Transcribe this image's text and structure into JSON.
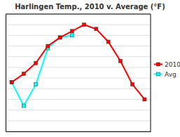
{
  "chart_data": {
    "type": "line",
    "title": "Harlingen Temp., 2010 v. Average (°F)",
    "x": [
      1,
      2,
      3,
      4,
      5,
      6,
      7,
      8,
      9,
      10,
      11,
      12
    ],
    "series": [
      {
        "name": "2010",
        "color": "#ff0000",
        "marker": "square",
        "values": [
          63,
          67,
          72,
          80,
          84,
          87,
          90,
          88,
          82,
          73,
          62,
          55
        ]
      },
      {
        "name": "Avg",
        "color": "#00ffff",
        "marker": "square",
        "values": [
          63,
          52,
          62,
          79,
          84,
          85,
          null,
          null,
          null,
          null,
          null,
          null
        ]
      }
    ],
    "xlim": [
      0.5,
      12.5
    ],
    "xticks": [],
    "ylim": [
      40,
      95
    ],
    "yticks": [
      40,
      45,
      50,
      55,
      60,
      65,
      70,
      75,
      80,
      85,
      90,
      95
    ],
    "grid": true,
    "tick_labels": false,
    "legend": "right"
  }
}
